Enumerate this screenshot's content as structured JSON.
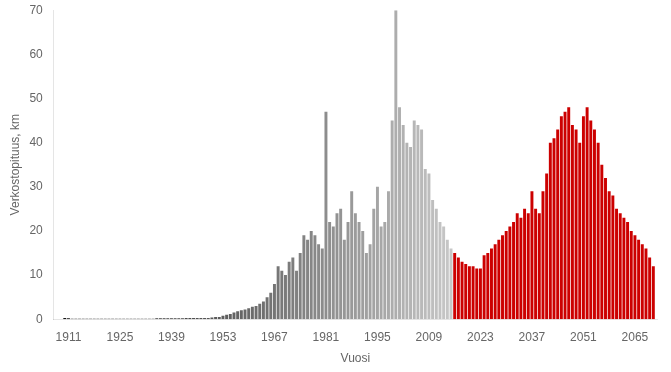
{
  "chart_data": {
    "type": "bar",
    "xlabel": "Vuosi",
    "ylabel": "Verkostopituus, km",
    "xlim": [
      1907,
      2071
    ],
    "ylim": [
      0,
      70
    ],
    "xticks": [
      1911,
      1925,
      1939,
      1953,
      1967,
      1981,
      1995,
      2009,
      2023,
      2037,
      2051,
      2065
    ],
    "yticks": [
      0,
      10,
      20,
      30,
      40,
      50,
      60,
      70
    ],
    "grid": false,
    "x": [
      1910,
      1911,
      1912,
      1913,
      1914,
      1915,
      1916,
      1917,
      1918,
      1919,
      1920,
      1921,
      1922,
      1923,
      1924,
      1925,
      1926,
      1927,
      1928,
      1929,
      1930,
      1931,
      1932,
      1933,
      1934,
      1935,
      1936,
      1937,
      1938,
      1939,
      1940,
      1941,
      1942,
      1943,
      1944,
      1945,
      1946,
      1947,
      1948,
      1949,
      1950,
      1951,
      1952,
      1953,
      1954,
      1955,
      1956,
      1957,
      1958,
      1959,
      1960,
      1961,
      1962,
      1963,
      1964,
      1965,
      1966,
      1967,
      1968,
      1969,
      1970,
      1971,
      1972,
      1973,
      1974,
      1975,
      1976,
      1977,
      1978,
      1979,
      1980,
      1981,
      1982,
      1983,
      1984,
      1985,
      1986,
      1987,
      1988,
      1989,
      1990,
      1991,
      1992,
      1993,
      1994,
      1995,
      1996,
      1997,
      1998,
      1999,
      2000,
      2001,
      2002,
      2003,
      2004,
      2005,
      2006,
      2007,
      2008,
      2009,
      2010,
      2011,
      2012,
      2013,
      2014,
      2015,
      2016,
      2017,
      2018,
      2019,
      2020,
      2021,
      2022,
      2023,
      2024,
      2025,
      2026,
      2027,
      2028,
      2029,
      2030,
      2031,
      2032,
      2033,
      2034,
      2035,
      2036,
      2037,
      2038,
      2039,
      2040,
      2041,
      2042,
      2043,
      2044,
      2045,
      2046,
      2047,
      2048,
      2049,
      2050,
      2051,
      2052,
      2053,
      2054,
      2055,
      2056,
      2057,
      2058,
      2059,
      2060,
      2061,
      2062,
      2063,
      2064,
      2065,
      2066,
      2067,
      2068,
      2069,
      2070
    ],
    "values": [
      0.3,
      0.2,
      0.1,
      0.1,
      0.1,
      0.1,
      0.1,
      0.1,
      0.1,
      0.1,
      0.1,
      0.1,
      0.1,
      0.1,
      0.1,
      0.1,
      0.1,
      0.1,
      0.1,
      0.1,
      0.1,
      0.1,
      0.1,
      0.1,
      0.1,
      0.2,
      0.2,
      0.2,
      0.2,
      0.2,
      0.2,
      0.2,
      0.2,
      0.3,
      0.3,
      0.3,
      0.3,
      0.3,
      0.3,
      0.3,
      0.4,
      0.5,
      0.5,
      0.8,
      1.0,
      1.2,
      1.5,
      1.8,
      2.0,
      2.2,
      2.5,
      2.8,
      3.0,
      3.5,
      4.0,
      5.0,
      6.0,
      8.0,
      12.0,
      11.0,
      10.0,
      13.0,
      14.0,
      11.0,
      15.0,
      19.0,
      18.0,
      20.0,
      19.0,
      17.0,
      16.0,
      47.0,
      22.0,
      21.0,
      24.0,
      25.0,
      18.0,
      22.0,
      29.0,
      24.0,
      22.0,
      20.0,
      15.0,
      17.0,
      25.0,
      30.0,
      21.0,
      22.0,
      29.0,
      45.0,
      70.0,
      48.0,
      44.0,
      40.0,
      39.0,
      45.0,
      44.0,
      43.0,
      34.0,
      33.0,
      27.0,
      25.0,
      22.0,
      21.0,
      18.0,
      16.0,
      15.0,
      14.0,
      13.0,
      12.5,
      12.0,
      12.0,
      11.5,
      11.5,
      14.5,
      15.0,
      16.0,
      17.0,
      18.0,
      19.0,
      20.0,
      21.0,
      22.0,
      24.0,
      23.0,
      25.0,
      24.0,
      29.0,
      25.0,
      24.0,
      29.0,
      33.0,
      40.0,
      41.0,
      43.0,
      46.0,
      47.0,
      48.0,
      44.0,
      43.0,
      40.0,
      46.0,
      48.0,
      45.0,
      43.0,
      40.0,
      35.0,
      32.0,
      29.0,
      28.0,
      25.0,
      24.0,
      23.0,
      22.0,
      20.0,
      19.0,
      18.0,
      17.0,
      16.0,
      14.0,
      12.0
    ],
    "colors": [
      "#141414",
      "#161616",
      "#181818",
      "#1a1a1a",
      "#1b1b1b",
      "#1d1d1d",
      "#1f1f1f",
      "#202020",
      "#222222",
      "#242424",
      "#252525",
      "#272727",
      "#292929",
      "#2b2b2b",
      "#2c2c2c",
      "#2e2e2e",
      "#303030",
      "#313131",
      "#333333",
      "#353535",
      "#363636",
      "#383838",
      "#3a3a3a",
      "#3c3c3c",
      "#3d3d3d",
      "#3f3f3f",
      "#414141",
      "#424242",
      "#444444",
      "#464646",
      "#474747",
      "#494949",
      "#4b4b4b",
      "#4d4d4d",
      "#4e4e4e",
      "#505050",
      "#525252",
      "#535353",
      "#555555",
      "#575757",
      "#585858",
      "#5a5a5a",
      "#5c5c5c",
      "#5e5e5e",
      "#5f5f5f",
      "#616161",
      "#636363",
      "#646464",
      "#666666",
      "#686868",
      "#696969",
      "#6b6b6b",
      "#6d6d6d",
      "#6f6f6f",
      "#707070",
      "#727272",
      "#747474",
      "#757575",
      "#777777",
      "#797979",
      "#7a7a7a",
      "#7c7c7c",
      "#7e7e7e",
      "#808080",
      "#818181",
      "#838383",
      "#858585",
      "#868686",
      "#888888",
      "#8a8a8a",
      "#8b8b8b",
      "#8d8d8d",
      "#8f8f8f",
      "#919191",
      "#929292",
      "#949494",
      "#969696",
      "#979797",
      "#999999",
      "#9b9b9b",
      "#9c9c9c",
      "#9e9e9e",
      "#a0a0a0",
      "#a2a2a2",
      "#a3a3a3",
      "#a5a5a5",
      "#a7a7a7",
      "#a8a8a8",
      "#aaaaaa",
      "#acacac",
      "#adadad",
      "#afafaf",
      "#b1b1b1",
      "#b3b3b3",
      "#b4b4b4",
      "#b6b6b6",
      "#b8b8b8",
      "#b9b9b9",
      "#bbbbbb",
      "#bdbdbd",
      "#bebebe",
      "#c0c0c0",
      "#c2c2c2",
      "#c4c4c4",
      "#c5c5c5",
      "#c7c7c7",
      "#cc0000",
      "#cc0000",
      "#cc0000",
      "#cc0000",
      "#cc0000",
      "#cc0000",
      "#cc0000",
      "#cc0000",
      "#cc0000",
      "#cc0000",
      "#cc0000",
      "#cc0000",
      "#cc0000",
      "#cc0000",
      "#cc0000",
      "#cc0000",
      "#cc0000",
      "#cc0000",
      "#cc0000",
      "#cc0000",
      "#cc0000",
      "#cc0000",
      "#cc0000",
      "#cc0000",
      "#cc0000",
      "#cc0000",
      "#cc0000",
      "#cc0000",
      "#cc0000",
      "#cc0000",
      "#cc0000",
      "#cc0000",
      "#cc0000",
      "#cc0000",
      "#cc0000",
      "#cc0000",
      "#cc0000",
      "#cc0000",
      "#cc0000",
      "#cc0000",
      "#cc0000",
      "#cc0000",
      "#cc0000",
      "#cc0000",
      "#cc0000",
      "#cc0000",
      "#cc0000",
      "#cc0000",
      "#cc0000",
      "#cc0000",
      "#cc0000",
      "#cc0000",
      "#cc0000",
      "#cc0000",
      "#cc0000"
    ]
  }
}
